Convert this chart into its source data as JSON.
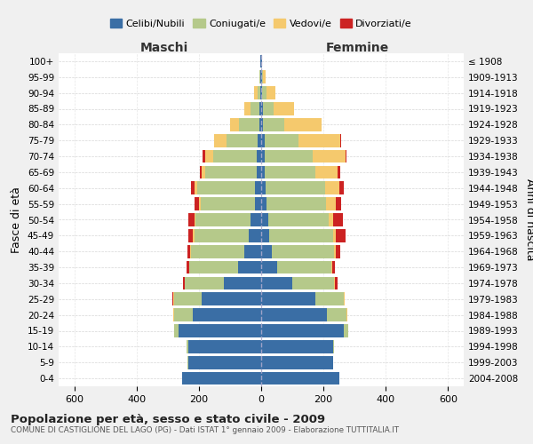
{
  "age_groups": [
    "0-4",
    "5-9",
    "10-14",
    "15-19",
    "20-24",
    "25-29",
    "30-34",
    "35-39",
    "40-44",
    "45-49",
    "50-54",
    "55-59",
    "60-64",
    "65-69",
    "70-74",
    "75-79",
    "80-84",
    "85-89",
    "90-94",
    "95-99",
    "100+"
  ],
  "birth_years": [
    "2004-2008",
    "1999-2003",
    "1994-1998",
    "1989-1993",
    "1984-1988",
    "1979-1983",
    "1974-1978",
    "1969-1973",
    "1964-1968",
    "1959-1963",
    "1954-1958",
    "1949-1953",
    "1944-1948",
    "1939-1943",
    "1934-1938",
    "1929-1933",
    "1924-1928",
    "1919-1923",
    "1914-1918",
    "1909-1913",
    "≤ 1908"
  ],
  "colors": {
    "celibe": "#3A6EA5",
    "coniugato": "#B5C98A",
    "vedovo": "#F5C96D",
    "divorziato": "#CC2222"
  },
  "maschi": {
    "celibe": [
      255,
      235,
      235,
      265,
      220,
      190,
      120,
      75,
      55,
      40,
      35,
      20,
      20,
      15,
      15,
      10,
      5,
      5,
      4,
      3,
      2
    ],
    "coniugato": [
      0,
      2,
      5,
      15,
      60,
      90,
      125,
      155,
      170,
      175,
      175,
      175,
      185,
      165,
      140,
      100,
      65,
      30,
      8,
      2,
      0
    ],
    "vedovo": [
      0,
      0,
      0,
      0,
      2,
      2,
      0,
      2,
      3,
      5,
      5,
      5,
      8,
      10,
      25,
      40,
      30,
      20,
      10,
      2,
      0
    ],
    "divorziato": [
      0,
      0,
      0,
      0,
      0,
      2,
      5,
      8,
      10,
      15,
      20,
      15,
      12,
      8,
      8,
      2,
      0,
      0,
      0,
      0,
      0
    ]
  },
  "femmine": {
    "nubile": [
      250,
      230,
      230,
      265,
      210,
      175,
      100,
      50,
      35,
      25,
      22,
      18,
      15,
      10,
      10,
      10,
      5,
      5,
      4,
      3,
      2
    ],
    "coniugata": [
      0,
      2,
      5,
      15,
      65,
      90,
      135,
      175,
      200,
      205,
      195,
      190,
      190,
      165,
      155,
      110,
      70,
      35,
      12,
      2,
      0
    ],
    "vedova": [
      0,
      0,
      0,
      0,
      2,
      2,
      2,
      2,
      5,
      10,
      15,
      32,
      45,
      70,
      105,
      135,
      120,
      65,
      30,
      8,
      2
    ],
    "divorziata": [
      0,
      0,
      0,
      0,
      0,
      2,
      8,
      10,
      15,
      30,
      30,
      18,
      15,
      10,
      5,
      2,
      0,
      0,
      0,
      0,
      0
    ]
  },
  "xlim": 650,
  "title": "Popolazione per età, sesso e stato civile - 2009",
  "subtitle": "COMUNE DI CASTIGLIONE DEL LAGO (PG) - Dati ISTAT 1° gennaio 2009 - Elaborazione TUTTITALIA.IT",
  "ylabel_left": "Fasce di età",
  "ylabel_right": "Anni di nascita",
  "xlabel_maschi": "Maschi",
  "xlabel_femmine": "Femmine"
}
